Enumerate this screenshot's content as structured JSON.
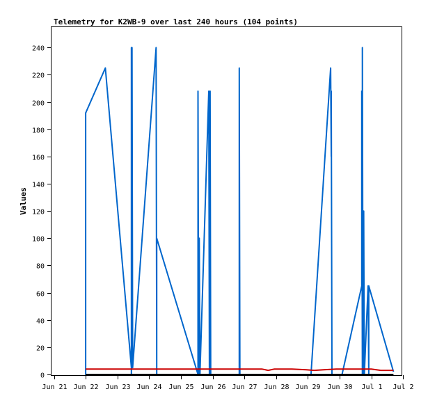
{
  "chart_data": {
    "type": "line",
    "title": "Telemetry for K2WB-9 over last 240 hours (104 points)",
    "xlabel": "",
    "ylabel": "Values",
    "x_range": [
      "Jun 21",
      "Jul 2"
    ],
    "ylim": [
      0,
      255
    ],
    "y_ticks": [
      0,
      20,
      40,
      60,
      80,
      100,
      120,
      140,
      160,
      180,
      200,
      220,
      240
    ],
    "x_ticks": [
      {
        "label": "Jun 21",
        "day": 0
      },
      {
        "label": "Jun 22",
        "day": 1
      },
      {
        "label": "Jun 23",
        "day": 2
      },
      {
        "label": "Jun 24",
        "day": 3
      },
      {
        "label": "Jun 25",
        "day": 4
      },
      {
        "label": "Jun 26",
        "day": 5
      },
      {
        "label": "Jun 27",
        "day": 6
      },
      {
        "label": "Jun 28",
        "day": 7
      },
      {
        "label": "Jun 29",
        "day": 8
      },
      {
        "label": "Jun 30",
        "day": 9
      },
      {
        "label": "Jul 1",
        "day": 10
      },
      {
        "label": "Jul 2",
        "day": 11
      }
    ],
    "grid": false,
    "legend": "none",
    "series": [
      {
        "color": "#0066cc",
        "points": [
          [
            1.0,
            0
          ],
          [
            1.0,
            192
          ],
          [
            1.0,
            0
          ],
          [
            1.0,
            192
          ],
          [
            1.62,
            225
          ],
          [
            2.44,
            5
          ],
          [
            2.44,
            240
          ],
          [
            2.44,
            0
          ],
          [
            2.46,
            240
          ],
          [
            2.48,
            5
          ],
          [
            3.22,
            240
          ],
          [
            3.24,
            0
          ],
          [
            3.24,
            100
          ],
          [
            4.54,
            0
          ],
          [
            4.54,
            208
          ],
          [
            4.56,
            0
          ],
          [
            4.58,
            100
          ],
          [
            4.6,
            0
          ],
          [
            4.88,
            208
          ],
          [
            4.9,
            0
          ],
          [
            4.92,
            208
          ],
          [
            4.94,
            0
          ],
          [
            5.84,
            0
          ],
          [
            5.84,
            225
          ],
          [
            5.86,
            0
          ],
          [
            8.1,
            0
          ],
          [
            8.72,
            225
          ],
          [
            8.74,
            160
          ],
          [
            8.74,
            208
          ],
          [
            8.76,
            0
          ],
          [
            9.08,
            0
          ],
          [
            9.7,
            65
          ],
          [
            9.7,
            208
          ],
          [
            9.72,
            0
          ],
          [
            9.72,
            240
          ],
          [
            9.74,
            0
          ],
          [
            9.76,
            120
          ],
          [
            9.78,
            0
          ],
          [
            9.9,
            65
          ],
          [
            9.92,
            0
          ],
          [
            9.92,
            65
          ],
          [
            10.7,
            2
          ]
        ]
      },
      {
        "color": "#cc0000",
        "points": [
          [
            1.0,
            4
          ],
          [
            2.0,
            4
          ],
          [
            3.0,
            4
          ],
          [
            4.0,
            4
          ],
          [
            5.0,
            4
          ],
          [
            6.0,
            4
          ],
          [
            6.55,
            4
          ],
          [
            6.75,
            3
          ],
          [
            6.95,
            4
          ],
          [
            7.5,
            4
          ],
          [
            7.95,
            3.5
          ],
          [
            8.2,
            3
          ],
          [
            8.5,
            3.5
          ],
          [
            8.9,
            4
          ],
          [
            9.5,
            4
          ],
          [
            10.0,
            4
          ],
          [
            10.3,
            3
          ],
          [
            10.7,
            3
          ]
        ]
      },
      {
        "color": "#000000",
        "points": [
          [
            1.0,
            0
          ],
          [
            10.7,
            0
          ]
        ]
      }
    ]
  }
}
